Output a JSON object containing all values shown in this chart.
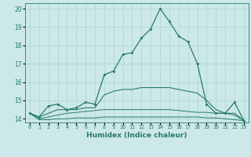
{
  "xlabel": "Humidex (Indice chaleur)",
  "x": [
    0,
    1,
    2,
    3,
    4,
    5,
    6,
    7,
    8,
    9,
    10,
    11,
    12,
    13,
    14,
    15,
    16,
    17,
    18,
    19,
    20,
    21,
    22,
    23
  ],
  "line1": [
    14.3,
    14.1,
    14.7,
    14.8,
    14.5,
    14.6,
    14.9,
    14.8,
    16.4,
    16.6,
    17.5,
    17.6,
    18.4,
    18.9,
    20.0,
    19.3,
    18.5,
    18.2,
    17.0,
    14.8,
    14.3,
    14.3,
    14.9,
    13.9
  ],
  "line2": [
    14.3,
    14.1,
    14.3,
    14.5,
    14.5,
    14.5,
    14.6,
    14.6,
    15.3,
    15.5,
    15.6,
    15.6,
    15.7,
    15.7,
    15.7,
    15.7,
    15.6,
    15.5,
    15.4,
    15.0,
    14.5,
    14.3,
    14.3,
    13.9
  ],
  "line3": [
    14.3,
    14.0,
    14.1,
    14.2,
    14.3,
    14.35,
    14.4,
    14.45,
    14.5,
    14.5,
    14.5,
    14.5,
    14.5,
    14.5,
    14.5,
    14.5,
    14.45,
    14.4,
    14.35,
    14.35,
    14.3,
    14.3,
    14.2,
    13.9
  ],
  "line4": [
    14.3,
    13.95,
    13.95,
    14.0,
    14.0,
    14.05,
    14.05,
    14.05,
    14.1,
    14.1,
    14.1,
    14.1,
    14.1,
    14.1,
    14.1,
    14.1,
    14.1,
    14.1,
    14.1,
    14.05,
    14.05,
    14.0,
    13.95,
    13.9
  ],
  "line_color": "#297a6e",
  "bg_color": "#cce8e8",
  "grid_color": "#aad4d4",
  "ylim": [
    13.8,
    20.3
  ],
  "xlim": [
    -0.5,
    23.5
  ],
  "yticks": [
    14,
    15,
    16,
    17,
    18,
    19,
    20
  ],
  "xtick_labels": [
    "0",
    "1",
    "2",
    "3",
    "4",
    "5",
    "6",
    "7",
    "8",
    "9",
    "10",
    "11",
    "12",
    "13",
    "14",
    "15",
    "16",
    "17",
    "18",
    "19",
    "20",
    "21",
    "22",
    "23"
  ]
}
